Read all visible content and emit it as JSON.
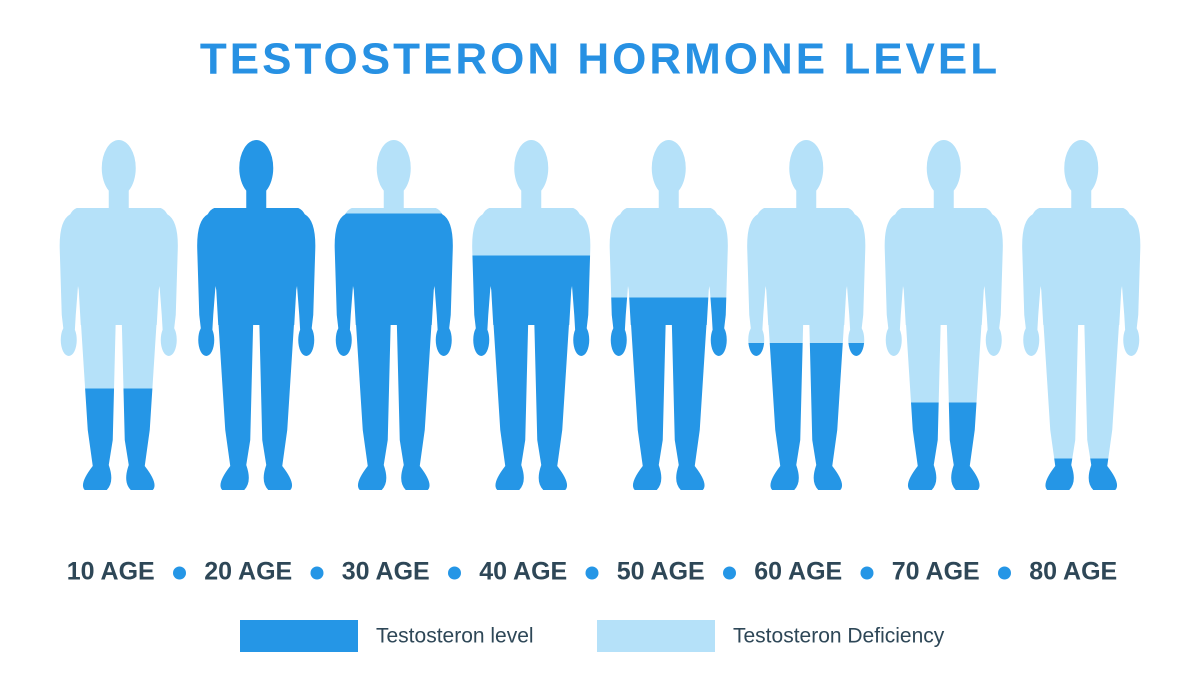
{
  "chart_data": {
    "type": "pictogram",
    "title": "TESTOSTERON HORMONE LEVEL",
    "categories": [
      "10 AGE",
      "20 AGE",
      "30 AGE",
      "40 AGE",
      "50 AGE",
      "60 AGE",
      "70 AGE",
      "80 AGE"
    ],
    "stacked": true,
    "series": [
      {
        "name": "Testosteron level",
        "color": "#2596e6",
        "values": [
          29,
          100,
          79,
          67,
          55,
          42,
          25,
          9
        ]
      },
      {
        "name": "Testosteron Deficiency",
        "color": "#b5e1f9",
        "values": [
          71,
          0,
          21,
          33,
          45,
          58,
          75,
          91
        ]
      }
    ]
  }
}
